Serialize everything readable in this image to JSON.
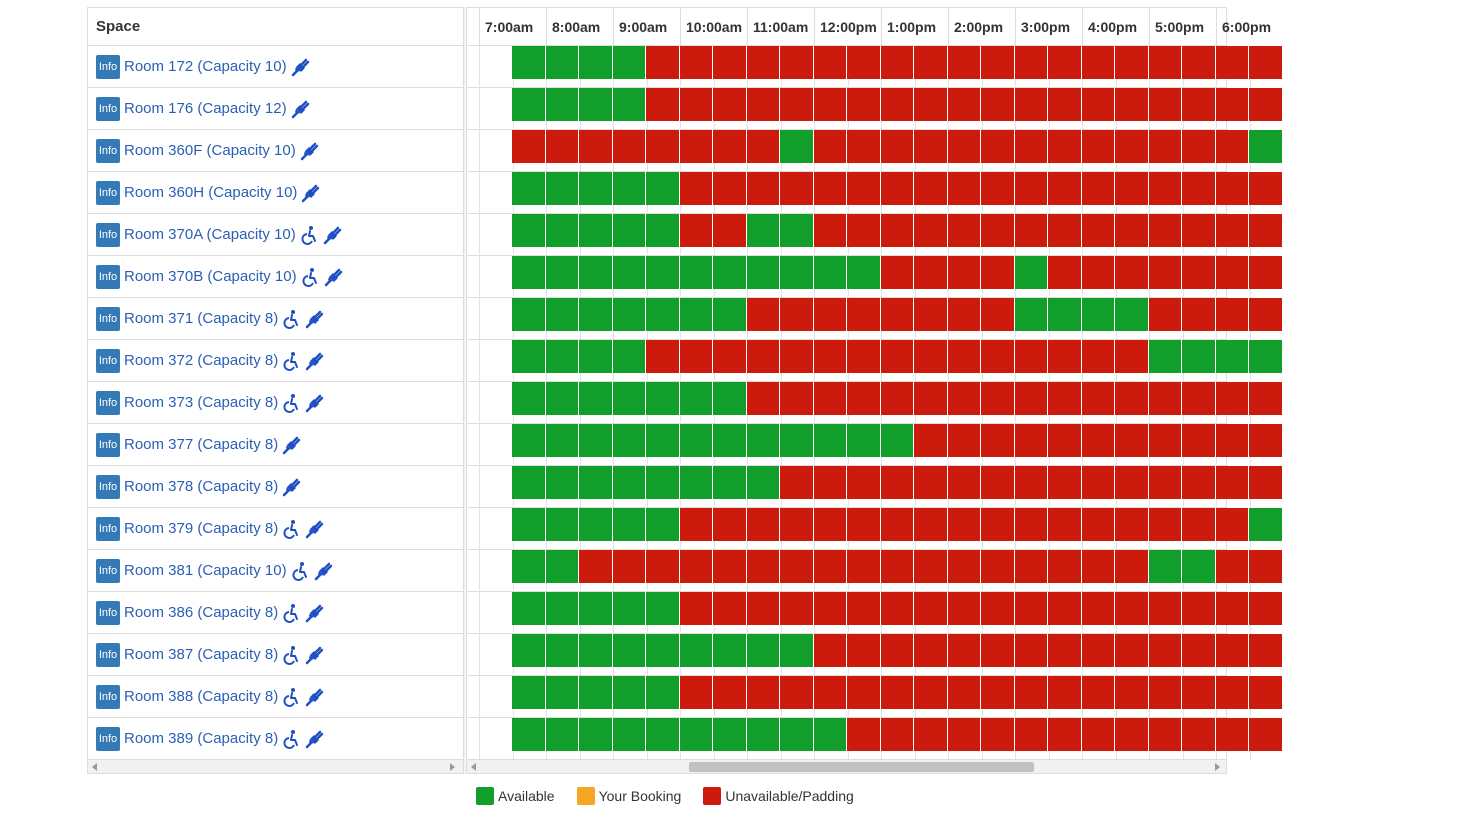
{
  "header": {
    "space_label": "Space"
  },
  "hours": [
    "7:00am",
    "8:00am",
    "9:00am",
    "10:00am",
    "11:00am",
    "12:00pm",
    "1:00pm",
    "2:00pm",
    "3:00pm",
    "4:00pm",
    "5:00pm",
    "6:00pm"
  ],
  "colors": {
    "available": "#119e2a",
    "booking": "#f5a623",
    "unavailable": "#cc1a0d"
  },
  "info_label": "Info",
  "icons": {
    "accessible": "accessible-icon",
    "power": "power-plug-icon"
  },
  "rooms": [
    {
      "name": "Room 172 (Capacity 10)",
      "accessible": false,
      "slots": "GGGGRRRRRRRRRRRRRRRRRRR"
    },
    {
      "name": "Room 176 (Capacity 12)",
      "accessible": false,
      "slots": "GGGGRRRRRRRRRRRRRRRRRRR"
    },
    {
      "name": "Room 360F (Capacity 10)",
      "accessible": false,
      "slots": "RRRRRRRRGRRRRRRRRRRRRRG"
    },
    {
      "name": "Room 360H (Capacity 10)",
      "accessible": false,
      "slots": "GGGGGRRRRRRRRRRRRRRRRRR"
    },
    {
      "name": "Room 370A (Capacity 10)",
      "accessible": true,
      "slots": "GGGGGRRGGRRRRRRRRRRRRRR"
    },
    {
      "name": "Room 370B (Capacity 10)",
      "accessible": true,
      "slots": "GGGGGGGGGGGRRRRGRRRRRRR"
    },
    {
      "name": "Room 371 (Capacity 8)",
      "accessible": true,
      "slots": "GGGGGGGRRRRRRRRGGGGRRRR"
    },
    {
      "name": "Room 372 (Capacity 8)",
      "accessible": true,
      "slots": "GGGGRRRRRRRRRRRRRRRGGGG"
    },
    {
      "name": "Room 373 (Capacity 8)",
      "accessible": true,
      "slots": "GGGGGGGRRRRRRRRRRRRRRRR"
    },
    {
      "name": "Room 377 (Capacity 8)",
      "accessible": false,
      "slots": "GGGGGGGGGGGGRRRRRRRRRRR"
    },
    {
      "name": "Room 378 (Capacity 8)",
      "accessible": false,
      "slots": "GGGGGGGGRRRRRRRRRRRRRRR"
    },
    {
      "name": "Room 379 (Capacity 8)",
      "accessible": true,
      "slots": "GGGGGRRRRRRRRRRRRRRRRRG"
    },
    {
      "name": "Room 381 (Capacity 10)",
      "accessible": true,
      "slots": "GGRRRRRRRRRRRRRRRRRGGRR"
    },
    {
      "name": "Room 386 (Capacity 8)",
      "accessible": true,
      "slots": "GGGGGRRRRRRRRRRRRRRRRRR"
    },
    {
      "name": "Room 387 (Capacity 8)",
      "accessible": true,
      "slots": "GGGGGGGGGRRRRRRRRRRRRRR"
    },
    {
      "name": "Room 388 (Capacity 8)",
      "accessible": true,
      "slots": "GGGGGRRRRRRRRRRRRRRRRRR"
    },
    {
      "name": "Room 389 (Capacity 8)",
      "accessible": true,
      "slots": "GGGGGGGGGGRRRRRRRRRRRRR"
    }
  ],
  "legend": [
    {
      "label": "Available",
      "color": "#119e2a"
    },
    {
      "label": "Your Booking",
      "color": "#f5a623"
    },
    {
      "label": "Unavailable/Padding",
      "color": "#cc1a0d"
    }
  ]
}
